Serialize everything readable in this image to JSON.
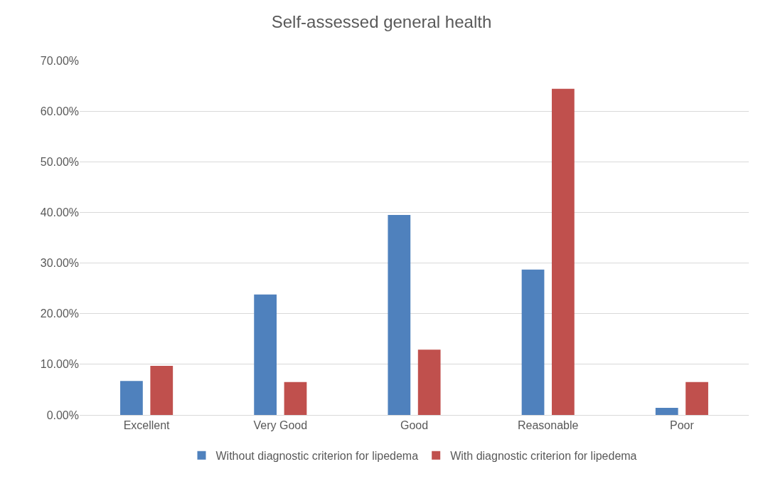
{
  "chart_data": {
    "type": "bar",
    "title": "Self-assessed general health",
    "categories": [
      "Excellent",
      "Very Good",
      "Good",
      "Reasonable",
      "Poor"
    ],
    "series": [
      {
        "name": "Without diagnostic criterion for lipedema",
        "color": "#4f81bd",
        "values": [
          6.7,
          23.8,
          39.5,
          28.7,
          1.4
        ]
      },
      {
        "name": "With diagnostic criterion for lipedema",
        "color": "#c0504d",
        "values": [
          9.7,
          6.5,
          12.9,
          64.4,
          6.5
        ]
      }
    ],
    "ylim": [
      0,
      70
    ],
    "yticks": [
      {
        "value": 0,
        "label": "0.00%"
      },
      {
        "value": 10,
        "label": "10.00%"
      },
      {
        "value": 20,
        "label": "20.00%"
      },
      {
        "value": 30,
        "label": "30.00%"
      },
      {
        "value": 40,
        "label": "40.00%"
      },
      {
        "value": 50,
        "label": "50.00%"
      },
      {
        "value": 60,
        "label": "60.00%"
      },
      {
        "value": 70,
        "label": "70.00%"
      }
    ],
    "grid": "y",
    "legend": "bottom"
  }
}
